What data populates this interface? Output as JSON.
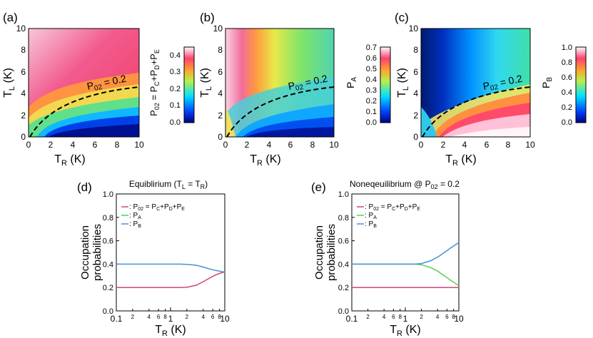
{
  "chart_data": [
    {
      "panel": "(a)",
      "type": "heatmap",
      "xlabel": "T_R (K)",
      "ylabel": "T_L (K)",
      "xlim": [
        0,
        10
      ],
      "ylim": [
        0,
        10
      ],
      "xticks": [
        0,
        2,
        4,
        6,
        8,
        10
      ],
      "yticks": [
        0,
        2,
        4,
        6,
        8,
        10
      ],
      "colorbar": {
        "label": "P02 = PC+PD+PE",
        "range": [
          0,
          0.45
        ],
        "ticks": [
          0.0,
          0.1,
          0.2,
          0.3,
          0.4
        ]
      },
      "contour": {
        "label": "P02 = 0.2",
        "style": "dashed"
      }
    },
    {
      "panel": "(b)",
      "type": "heatmap",
      "xlabel": "T_R (K)",
      "ylabel": "T_L (K)",
      "xlim": [
        0,
        10
      ],
      "ylim": [
        0,
        10
      ],
      "xticks": [
        0,
        2,
        4,
        6,
        8,
        10
      ],
      "yticks": [
        0,
        2,
        4,
        6,
        8,
        10
      ],
      "colorbar": {
        "label": "PA",
        "range": [
          0,
          0.7
        ],
        "ticks": [
          0.0,
          0.1,
          0.2,
          0.3,
          0.4,
          0.5,
          0.6,
          0.7
        ]
      },
      "contour": {
        "label": "P02 = 0.2",
        "style": "dashed"
      }
    },
    {
      "panel": "(c)",
      "type": "heatmap",
      "xlabel": "T_R (K)",
      "ylabel": "T_L (K)",
      "xlim": [
        0,
        10
      ],
      "ylim": [
        0,
        10
      ],
      "xticks": [
        0,
        2,
        4,
        6,
        8,
        10
      ],
      "yticks": [
        0,
        2,
        4,
        6,
        8,
        10
      ],
      "colorbar": {
        "label": "PB",
        "range": [
          0,
          1.0
        ],
        "ticks": [
          0.0,
          0.2,
          0.4,
          0.6,
          0.8,
          1.0
        ]
      },
      "contour": {
        "label": "P02 = 0.2",
        "style": "dashed"
      }
    },
    {
      "panel": "(d)",
      "type": "line",
      "title": "Equiblirium (TL = TR)",
      "xlabel": "T_R (K)",
      "ylabel": "Occupation probabilities",
      "xscale": "log",
      "xlim": [
        0.1,
        10
      ],
      "ylim": [
        0,
        1.0
      ],
      "yticks": [
        0.0,
        0.2,
        0.4,
        0.6,
        0.8,
        1.0
      ],
      "xtick_labels": [
        "0.1",
        "2",
        "4",
        "6",
        "8",
        "1",
        "2",
        "4",
        "6",
        "8",
        "10"
      ],
      "series": [
        {
          "name": ": P02 = PC+PD+PE",
          "color": "#d0457a",
          "x": [
            0.1,
            1,
            1.5,
            2,
            3,
            4,
            5,
            6,
            7,
            8,
            10
          ],
          "values": [
            0.2,
            0.2,
            0.2,
            0.202,
            0.22,
            0.25,
            0.275,
            0.295,
            0.31,
            0.32,
            0.335
          ]
        },
        {
          "name": ": PA",
          "color": "#52d34e",
          "x": [],
          "values": []
        },
        {
          "name": ": PB",
          "color": "#4a90d9",
          "x": [
            0.1,
            1,
            1.5,
            2,
            3,
            4,
            5,
            6,
            7,
            8,
            10
          ],
          "values": [
            0.4,
            0.4,
            0.4,
            0.398,
            0.39,
            0.375,
            0.362,
            0.352,
            0.345,
            0.34,
            0.332
          ]
        }
      ]
    },
    {
      "panel": "(e)",
      "type": "line",
      "title": "Noneqeuilibrium @ P02 = 0.2",
      "xlabel": "T_R (K)",
      "ylabel": "Occupation probabilities",
      "xscale": "log",
      "xlim": [
        0.1,
        10
      ],
      "ylim": [
        0,
        1.0
      ],
      "yticks": [
        0.0,
        0.2,
        0.4,
        0.6,
        0.8,
        1.0
      ],
      "xtick_labels": [
        "0.1",
        "2",
        "4",
        "6",
        "8",
        "1",
        "2",
        "4",
        "6",
        "8",
        "10"
      ],
      "series": [
        {
          "name": ": P02 = PC+PD+PE",
          "color": "#d0457a",
          "x": [
            0.1,
            1,
            2,
            4,
            6,
            8,
            10
          ],
          "values": [
            0.2,
            0.2,
            0.2,
            0.2,
            0.2,
            0.2,
            0.2
          ]
        },
        {
          "name": ": PA",
          "color": "#52d34e",
          "x": [
            0.1,
            1,
            1.5,
            2,
            3,
            4,
            5,
            6,
            7,
            8,
            10
          ],
          "values": [
            0.4,
            0.4,
            0.4,
            0.395,
            0.37,
            0.34,
            0.31,
            0.285,
            0.262,
            0.245,
            0.215
          ]
        },
        {
          "name": ": PB",
          "color": "#4a90d9",
          "x": [
            0.1,
            1,
            1.5,
            2,
            3,
            4,
            5,
            6,
            7,
            8,
            10
          ],
          "values": [
            0.4,
            0.4,
            0.4,
            0.405,
            0.43,
            0.46,
            0.49,
            0.515,
            0.538,
            0.555,
            0.585
          ]
        }
      ]
    }
  ]
}
